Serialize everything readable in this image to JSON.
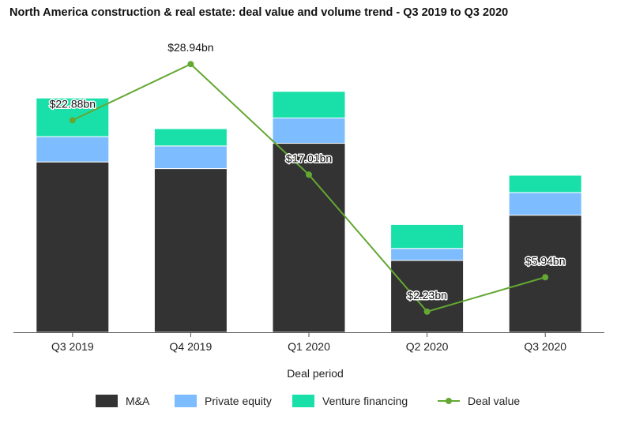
{
  "chart_data": {
    "type": "bar",
    "stacked": true,
    "title": "North America construction & real estate: deal value and volume trend - Q3 2019 to Q3 2020",
    "xlabel": "Deal period",
    "ylabel": "",
    "categories": [
      "Q3 2019",
      "Q4 2019",
      "Q1 2020",
      "Q2 2020",
      "Q3 2020"
    ],
    "ylim": [
      0,
      1100
    ],
    "series": [
      {
        "name": "M&A",
        "kind": "bar",
        "color": "#333333",
        "values": [
          640,
          615,
          710,
          270,
          440
        ]
      },
      {
        "name": "Private equity",
        "kind": "bar",
        "color": "#7cbcff",
        "values": [
          95,
          85,
          95,
          45,
          85
        ]
      },
      {
        "name": "Venture financing",
        "kind": "bar",
        "color": "#19e0a9",
        "values": [
          145,
          65,
          100,
          90,
          65
        ]
      }
    ],
    "line": {
      "name": "Deal value",
      "color": "#63a832",
      "values": [
        22.88,
        28.94,
        17.01,
        2.23,
        5.94
      ],
      "labels": [
        "$22.88bn",
        "$28.94bn",
        "$17.01bn",
        "$2.23bn",
        "$5.94bn"
      ],
      "ylim": [
        0,
        31.6
      ]
    },
    "grid": false,
    "legend_position": "bottom"
  }
}
